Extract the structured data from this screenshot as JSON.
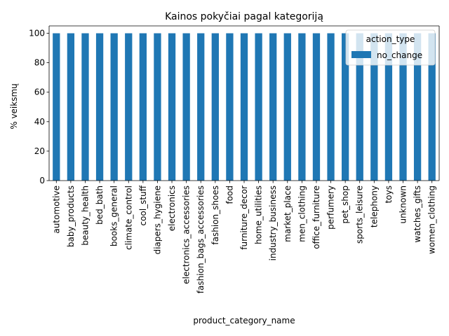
{
  "chart_data": {
    "type": "bar",
    "title": "Kainos pokyčiai pagal kategoriją",
    "xlabel": "product_category_name",
    "ylabel": "% veiksmų",
    "ylim": [
      0,
      105
    ],
    "yticks": [
      0,
      20,
      40,
      60,
      80,
      100
    ],
    "grid": false,
    "legend": {
      "title": "action_type",
      "placement": "top-right"
    },
    "categories": [
      "automotive",
      "baby_products",
      "beauty_health",
      "bed_bath",
      "books_general",
      "climate_control",
      "cool_stuff",
      "diapers_hygiene",
      "electronics",
      "electronics_accessories",
      "fashion_bags_accessories",
      "fashion_shoes",
      "food",
      "furniture_decor",
      "home_utilities",
      "industry_business",
      "market_place",
      "men_clothing",
      "office_furniture",
      "perfumery",
      "pet_shop",
      "sports_leisure",
      "telephony",
      "toys",
      "unknown",
      "watches_gifts",
      "women_clothing"
    ],
    "series": [
      {
        "name": "no_change",
        "color": "#1f77b4",
        "values": [
          100,
          100,
          100,
          100,
          100,
          100,
          100,
          100,
          100,
          100,
          100,
          100,
          100,
          100,
          100,
          100,
          100,
          100,
          100,
          100,
          100,
          100,
          100,
          100,
          100,
          100,
          100
        ]
      }
    ]
  }
}
